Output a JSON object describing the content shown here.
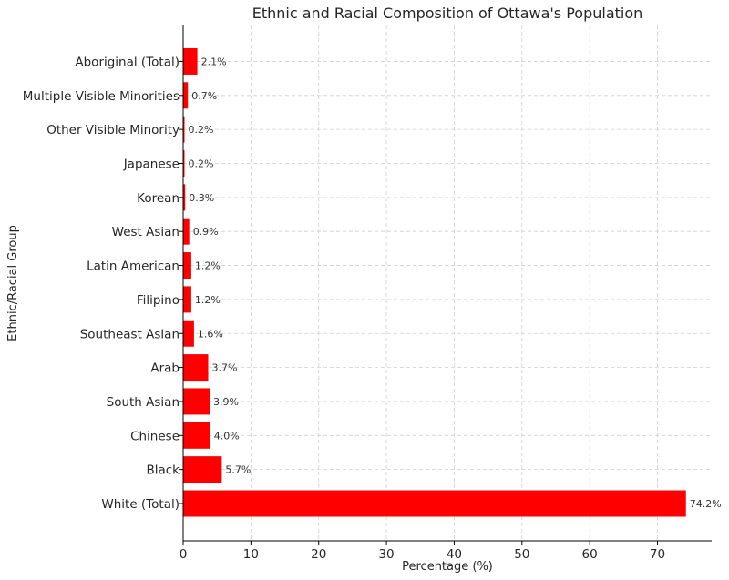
{
  "chart_data": {
    "type": "bar",
    "orientation": "horizontal",
    "title": "Ethnic and Racial Composition of Ottawa's Population",
    "xlabel": "Percentage (%)",
    "ylabel": "Ethnic/Racial Group",
    "xlim": [
      0,
      78
    ],
    "xticks": [
      0,
      10,
      20,
      30,
      40,
      50,
      60,
      70
    ],
    "grid": true,
    "bar_color": "#ff0000",
    "categories": [
      "White (Total)",
      "Black",
      "Chinese",
      "South Asian",
      "Arab",
      "Southeast Asian",
      "Filipino",
      "Latin American",
      "West Asian",
      "Korean",
      "Japanese",
      "Other Visible Minority",
      "Multiple Visible Minorities",
      "Aboriginal (Total)"
    ],
    "values": [
      74.2,
      5.7,
      4.0,
      3.9,
      3.7,
      1.6,
      1.2,
      1.2,
      0.9,
      0.3,
      0.2,
      0.2,
      0.7,
      2.1
    ],
    "data_labels": [
      "74.2%",
      "5.7%",
      "4.0%",
      "3.9%",
      "3.7%",
      "1.6%",
      "1.2%",
      "1.2%",
      "0.9%",
      "0.3%",
      "0.2%",
      "0.2%",
      "0.7%",
      "2.1%"
    ]
  }
}
